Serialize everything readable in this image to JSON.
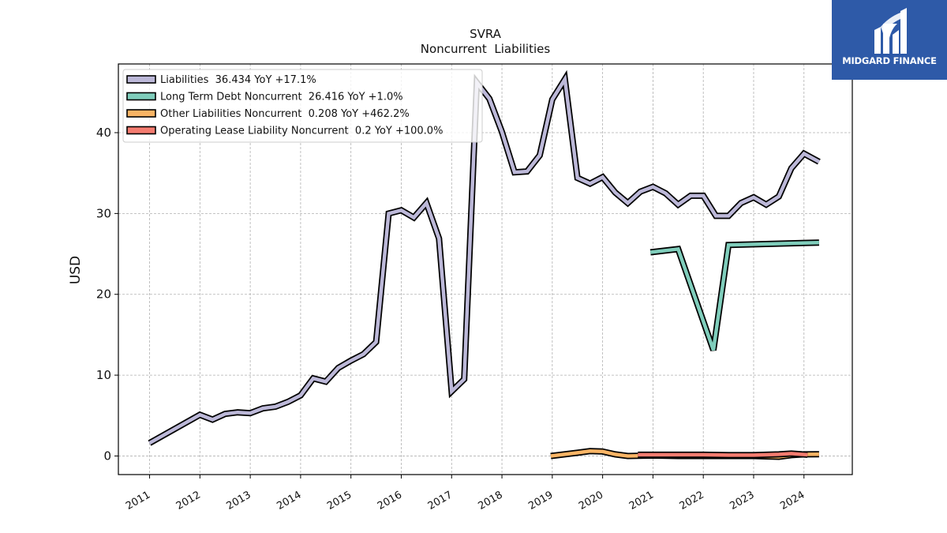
{
  "chart_data": {
    "type": "line",
    "title": "SVRA",
    "subtitle": "Noncurrent  Liabilities",
    "xlabel": "",
    "ylabel": "USD",
    "x_ticks": [
      "2011",
      "2012",
      "2013",
      "2014",
      "2015",
      "2016",
      "2017",
      "2018",
      "2019",
      "2020",
      "2021",
      "2022",
      "2023",
      "2024"
    ],
    "y_ticks": [
      0,
      10,
      20,
      30,
      40
    ],
    "xlim": [
      2010.38,
      2024.96
    ],
    "ylim": [
      -2.3,
      48.5
    ],
    "grid": true,
    "legend_position": "top-left",
    "series": [
      {
        "name": "Liabilities  36.434 YoY +17.1%",
        "color": "#bcb8d8",
        "points": [
          [
            2011.0,
            1.6
          ],
          [
            2012.0,
            5.1
          ],
          [
            2012.25,
            4.5
          ],
          [
            2012.5,
            5.2
          ],
          [
            2012.75,
            5.4
          ],
          [
            2013.0,
            5.3
          ],
          [
            2013.25,
            5.9
          ],
          [
            2013.5,
            6.1
          ],
          [
            2013.75,
            6.7
          ],
          [
            2014.0,
            7.5
          ],
          [
            2014.25,
            9.6
          ],
          [
            2014.5,
            9.2
          ],
          [
            2014.75,
            10.9
          ],
          [
            2015.0,
            11.8
          ],
          [
            2015.25,
            12.6
          ],
          [
            2015.5,
            14.1
          ],
          [
            2015.75,
            30.0
          ],
          [
            2016.0,
            30.4
          ],
          [
            2016.25,
            29.5
          ],
          [
            2016.5,
            31.3
          ],
          [
            2016.75,
            26.9
          ],
          [
            2017.0,
            8.0
          ],
          [
            2017.25,
            9.5
          ],
          [
            2017.5,
            46.2
          ],
          [
            2017.75,
            44.2
          ],
          [
            2018.0,
            40.1
          ],
          [
            2018.25,
            35.1
          ],
          [
            2018.5,
            35.2
          ],
          [
            2018.75,
            37.2
          ],
          [
            2019.0,
            44.1
          ],
          [
            2019.25,
            46.6
          ],
          [
            2019.5,
            34.4
          ],
          [
            2019.75,
            33.7
          ],
          [
            2020.0,
            34.5
          ],
          [
            2020.25,
            32.6
          ],
          [
            2020.5,
            31.3
          ],
          [
            2020.75,
            32.7
          ],
          [
            2021.0,
            33.3
          ],
          [
            2021.25,
            32.5
          ],
          [
            2021.5,
            31.1
          ],
          [
            2021.75,
            32.2
          ],
          [
            2022.0,
            32.2
          ],
          [
            2022.25,
            29.7
          ],
          [
            2022.5,
            29.7
          ],
          [
            2022.75,
            31.3
          ],
          [
            2023.0,
            32.0
          ],
          [
            2023.25,
            31.1
          ],
          [
            2023.5,
            32.1
          ],
          [
            2023.75,
            35.6
          ],
          [
            2024.0,
            37.4
          ],
          [
            2024.3,
            36.4
          ]
        ]
      },
      {
        "name": "Long Term Debt Noncurrent  26.416 YoY +1.0%",
        "color": "#7fcdbb",
        "points": [
          [
            2020.95,
            25.2
          ],
          [
            2021.5,
            25.6
          ],
          [
            2022.2,
            13.1
          ],
          [
            2022.5,
            26.1
          ],
          [
            2024.3,
            26.4
          ]
        ]
      },
      {
        "name": "Other Liabilities Noncurrent  0.208 YoY +462.2%",
        "color": "#f8b465",
        "points": [
          [
            2018.97,
            0.0
          ],
          [
            2019.5,
            0.4
          ],
          [
            2019.75,
            0.6
          ],
          [
            2020.0,
            0.55
          ],
          [
            2020.25,
            0.2
          ],
          [
            2020.5,
            0.0
          ],
          [
            2021.0,
            0.05
          ],
          [
            2021.5,
            0.0
          ],
          [
            2022.0,
            0.0
          ],
          [
            2022.5,
            0.0
          ],
          [
            2023.0,
            0.0
          ],
          [
            2023.5,
            -0.1
          ],
          [
            2023.75,
            0.1
          ],
          [
            2024.0,
            0.2
          ],
          [
            2024.3,
            0.208
          ]
        ]
      },
      {
        "name": "Operating Lease Liability Noncurrent  0.2 YoY +100.0%",
        "color": "#f47c70",
        "points": [
          [
            2020.7,
            0.15
          ],
          [
            2021.5,
            0.15
          ],
          [
            2022.0,
            0.15
          ],
          [
            2022.5,
            0.1
          ],
          [
            2023.0,
            0.1
          ],
          [
            2023.5,
            0.2
          ],
          [
            2023.75,
            0.3
          ],
          [
            2024.07,
            0.15
          ]
        ]
      }
    ]
  },
  "logo": {
    "text": "MIDGARD FINANCE",
    "color": "#2e5aa8"
  }
}
